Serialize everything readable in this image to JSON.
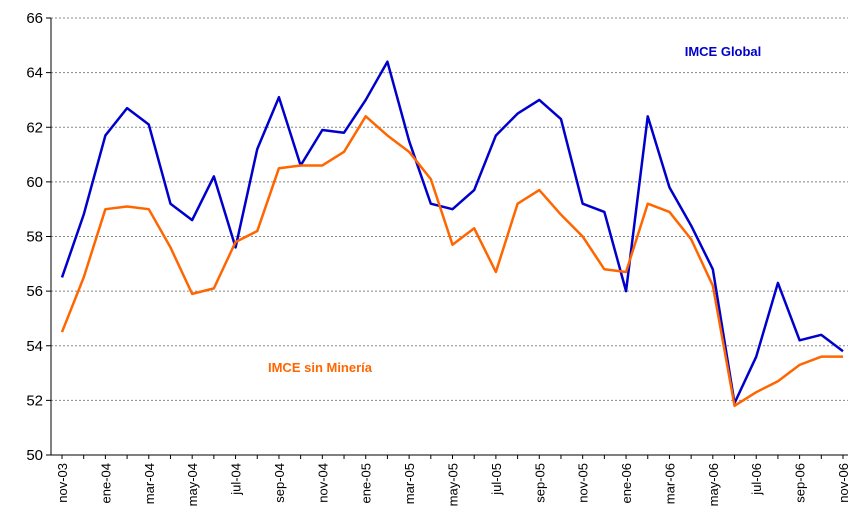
{
  "chart_data": {
    "type": "line",
    "categories": [
      "nov-03",
      null,
      "ene-04",
      null,
      "mar-04",
      null,
      "may-04",
      null,
      "jul-04",
      null,
      "sep-04",
      null,
      "nov-04",
      null,
      "ene-05",
      null,
      "mar-05",
      null,
      "may-05",
      null,
      "jul-05",
      null,
      "sep-05",
      null,
      "nov-05",
      null,
      "ene-06",
      null,
      "mar-06",
      null,
      "may-06",
      null,
      "jul-06",
      null,
      "sep-06",
      null,
      "nov-06"
    ],
    "series": [
      {
        "name": "IMCE Global",
        "color": "#0000cc",
        "values": [
          56.5,
          58.8,
          61.7,
          62.7,
          62.1,
          59.2,
          58.6,
          60.2,
          57.6,
          61.2,
          63.1,
          60.6,
          61.9,
          61.8,
          63.0,
          64.4,
          61.5,
          59.2,
          59.0,
          59.7,
          61.7,
          62.5,
          63.0,
          62.3,
          59.2,
          58.9,
          56.0,
          62.4,
          59.8,
          58.4,
          56.8,
          51.9,
          53.6,
          56.3,
          54.2,
          54.4,
          53.8
        ]
      },
      {
        "name": "IMCE sin Minería",
        "color": "#ff6600",
        "values": [
          54.5,
          56.5,
          59.0,
          59.1,
          59.0,
          57.6,
          55.9,
          56.1,
          57.8,
          58.2,
          60.5,
          60.6,
          60.6,
          61.1,
          62.4,
          61.7,
          61.1,
          60.1,
          57.7,
          58.3,
          56.7,
          59.2,
          59.7,
          58.8,
          58.0,
          56.8,
          56.7,
          59.2,
          58.9,
          57.9,
          56.2,
          51.8,
          52.3,
          52.7,
          53.3,
          53.6,
          53.6
        ]
      }
    ],
    "ylim": [
      50,
      66
    ],
    "yticks": [
      50,
      52,
      54,
      56,
      58,
      60,
      62,
      64,
      66
    ],
    "grid": true
  }
}
